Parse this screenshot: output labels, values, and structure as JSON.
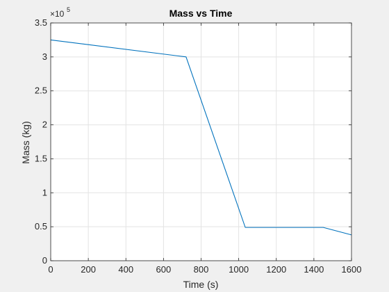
{
  "chart_data": {
    "type": "line",
    "title": "Mass vs Time",
    "xlabel": "Time (s)",
    "ylabel": "Mass (kg)",
    "xlim": [
      0,
      1600
    ],
    "ylim": [
      0,
      3.5
    ],
    "y_scale_factor": "×10",
    "y_scale_exponent": "5",
    "xticks": [
      0,
      200,
      400,
      600,
      800,
      1000,
      1200,
      1400,
      1600
    ],
    "xtick_labels": [
      "0",
      "200",
      "400",
      "600",
      "800",
      "1000",
      "1200",
      "1400",
      "1600"
    ],
    "yticks": [
      0,
      0.5,
      1,
      1.5,
      2,
      2.5,
      3,
      3.5
    ],
    "ytick_labels": [
      "0",
      "0.5",
      "1",
      "1.5",
      "2",
      "2.5",
      "3",
      "3.5"
    ],
    "grid": true,
    "series": [
      {
        "color": "#0072bd",
        "x": [
          0,
          720,
          1035,
          1450,
          1600
        ],
        "y": [
          3.25,
          3.0,
          0.49,
          0.49,
          0.38
        ]
      }
    ]
  }
}
